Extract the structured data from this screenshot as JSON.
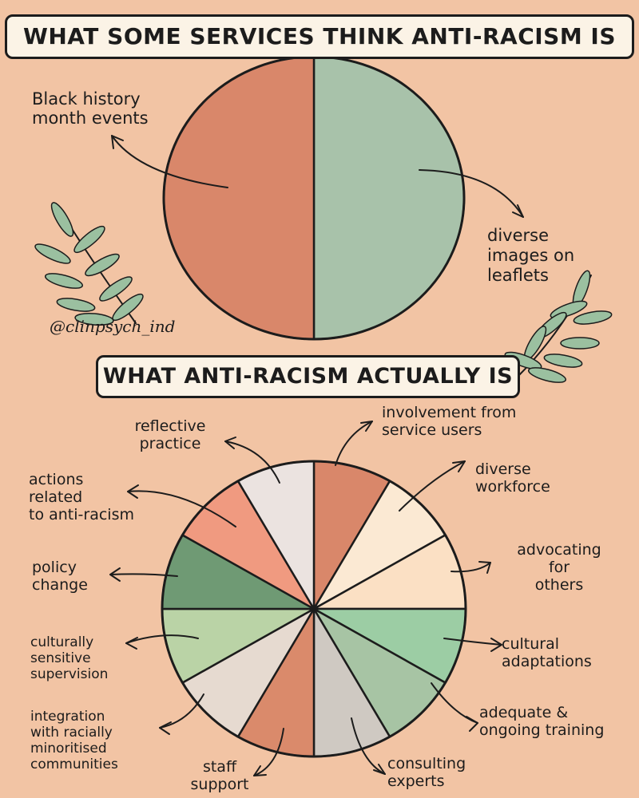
{
  "titles": {
    "top": "WHAT SOME SERVICES THINK ANTI-RACISM IS",
    "bottom": "WHAT ANTI-RACISM ACTUALLY IS"
  },
  "credit": "@clinpsych_ind",
  "colors": {
    "background": "#f2c4a4",
    "outline": "#1c1c1c",
    "banner": "#fbf3e6",
    "leaf": "#9bc0a0"
  },
  "chart_data": [
    {
      "type": "pie",
      "title": "WHAT SOME SERVICES THINK ANTI-RACISM IS",
      "slices": [
        {
          "label": "Black history month events",
          "value": 50,
          "color": "#a8c2aa"
        },
        {
          "label": "diverse images on leaflets",
          "value": 50,
          "color": "#d9876a"
        }
      ]
    },
    {
      "type": "pie",
      "title": "WHAT ANTI-RACISM ACTUALLY IS",
      "slices": [
        {
          "label": "involvement from service users",
          "value": 8.3,
          "color": "#d9876a"
        },
        {
          "label": "diverse workforce",
          "value": 8.3,
          "color": "#fbe9d3"
        },
        {
          "label": "advocating for others",
          "value": 8.3,
          "color": "#fbe0c4"
        },
        {
          "label": "cultural adaptations",
          "value": 8.3,
          "color": "#9ccda4"
        },
        {
          "label": "adequate & ongoing training",
          "value": 8.3,
          "color": "#a7c4a4"
        },
        {
          "label": "consulting experts",
          "value": 8.3,
          "color": "#cfc9c2"
        },
        {
          "label": "staff support",
          "value": 8.3,
          "color": "#da8a6b"
        },
        {
          "label": "integration with racially minoritised communities",
          "value": 8.3,
          "color": "#e6dad0"
        },
        {
          "label": "culturally sensitive supervision",
          "value": 8.3,
          "color": "#bad3a6"
        },
        {
          "label": "policy change",
          "value": 8.3,
          "color": "#6f9a74"
        },
        {
          "label": "actions related to anti-racism",
          "value": 8.3,
          "color": "#f09a80"
        },
        {
          "label": "reflective practice",
          "value": 8.3,
          "color": "#ebe3e0"
        }
      ]
    }
  ],
  "labels": {
    "black_history": "Black history\nmonth events",
    "diverse_images": "diverse\nimages on\nleaflets",
    "involvement": "involvement from\nservice users",
    "diverse_workforce": "diverse\nworkforce",
    "advocating": "advocating\nfor\nothers",
    "cultural_adaptations": "cultural\nadaptations",
    "adequate_training": "adequate &\nongoing training",
    "consulting": "consulting\nexperts",
    "staff_support": "staff\nsupport",
    "integration": "integration\nwith racially\nminoritised\ncommunities",
    "culturally_sensitive": "culturally\nsensitive\nsupervision",
    "policy": "policy\nchange",
    "actions": "actions\nrelated\nto anti-racism",
    "reflective": "reflective\npractice"
  }
}
